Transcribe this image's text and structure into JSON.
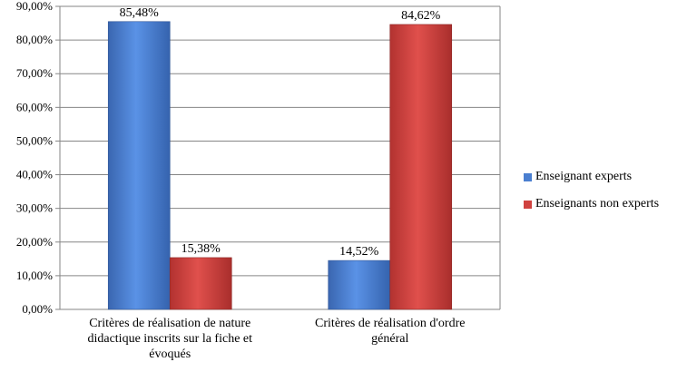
{
  "chart_data": {
    "type": "bar",
    "categories": [
      [
        "Critères de réalisation de nature",
        "didactique inscrits sur la fiche et",
        "évoqués"
      ],
      [
        "Critères de réalisation d'ordre",
        "général"
      ]
    ],
    "series": [
      {
        "name": "Enseignant experts",
        "color": "#4A7FD0",
        "values": [
          85.48,
          14.52
        ],
        "labels": [
          "85,48%",
          "14,52%"
        ]
      },
      {
        "name": "Enseignants non experts",
        "color": "#D0423F",
        "values": [
          15.38,
          84.62
        ],
        "labels": [
          "15,38%",
          "84,62%"
        ]
      }
    ],
    "ylim": [
      0,
      90
    ],
    "yticks": [
      "0,00%",
      "10,00%",
      "20,00%",
      "30,00%",
      "40,00%",
      "50,00%",
      "60,00%",
      "70,00%",
      "80,00%",
      "90,00%"
    ],
    "grid": true,
    "legend_position": "right",
    "title": "",
    "xlabel": "",
    "ylabel": ""
  }
}
